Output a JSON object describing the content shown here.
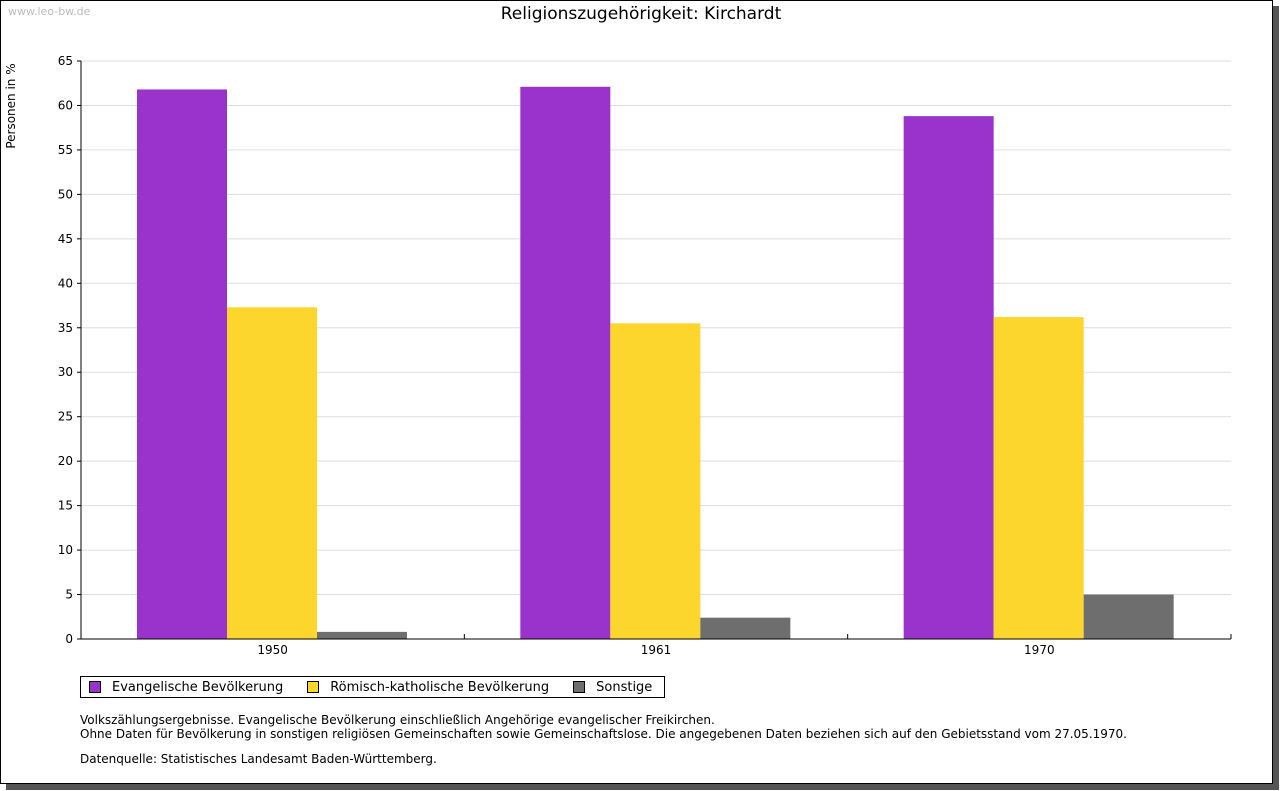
{
  "watermark": "www.leo-bw.de",
  "chart_data": {
    "type": "bar",
    "title": "Religionszugehörigkeit: Kirchardt",
    "xlabel": "",
    "ylabel": "Personen in %",
    "categories": [
      "1950",
      "1961",
      "1970"
    ],
    "ylim": [
      0,
      65
    ],
    "yticks": [
      0,
      5,
      10,
      15,
      20,
      25,
      30,
      35,
      40,
      45,
      50,
      55,
      60,
      65
    ],
    "grid": true,
    "series": [
      {
        "name": "Evangelische Bevölkerung",
        "color": "#9933CC",
        "values": [
          61.8,
          62.1,
          58.8
        ]
      },
      {
        "name": "Römisch-katholische Bevölkerung",
        "color": "#FCD62C",
        "values": [
          37.3,
          35.5,
          36.2
        ]
      },
      {
        "name": "Sonstige",
        "color": "#6E6E6E",
        "values": [
          0.8,
          2.4,
          5.0
        ]
      }
    ],
    "legend_position": "bottom-left"
  },
  "notes": {
    "line1": "Volkszählungsergebnisse. Evangelische Bevölkerung einschließlich Angehörige evangelischer Freikirchen.",
    "line2": "Ohne Daten für Bevölkerung in sonstigen religiösen Gemeinschaften sowie Gemeinschaftslose. Die angegebenen Daten beziehen sich auf den Gebietsstand vom 27.05.1970.",
    "source": "Datenquelle: Statistisches Landesamt Baden-Württemberg."
  }
}
